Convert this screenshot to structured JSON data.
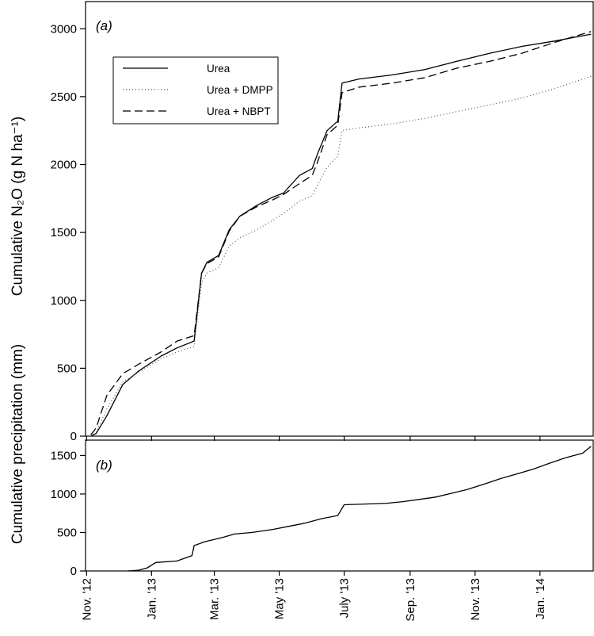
{
  "chart_data": [
    {
      "type": "line",
      "panel_label": "(a)",
      "ylabel": "Cumulative N₂O (g N ha⁻¹)",
      "ylim": [
        0,
        3200
      ],
      "yticks": [
        0,
        500,
        1000,
        1500,
        2000,
        2500,
        3000
      ],
      "xlim": [
        "2012-10-31",
        "2014-02-20"
      ],
      "legend": "top-left",
      "series": [
        {
          "name": "Urea",
          "x": [
            "2012-11-05",
            "2012-11-10",
            "2012-11-20",
            "2012-12-05",
            "2012-12-20",
            "2013-01-10",
            "2013-01-25",
            "2013-02-10",
            "2013-02-17",
            "2013-02-22",
            "2013-03-05",
            "2013-03-15",
            "2013-03-25",
            "2013-04-10",
            "2013-04-25",
            "2013-05-05",
            "2013-05-20",
            "2013-06-01",
            "2013-06-06",
            "2013-06-15",
            "2013-06-25",
            "2013-06-29",
            "2013-07-15",
            "2013-08-15",
            "2013-09-15",
            "2013-10-15",
            "2013-11-15",
            "2013-12-15",
            "2014-01-15",
            "2014-02-18"
          ],
          "values": [
            0,
            20,
            150,
            380,
            480,
            590,
            650,
            700,
            1200,
            1280,
            1330,
            1520,
            1620,
            1700,
            1760,
            1790,
            1920,
            1970,
            2080,
            2250,
            2320,
            2600,
            2630,
            2660,
            2700,
            2760,
            2820,
            2870,
            2910,
            2960
          ]
        },
        {
          "name": "Urea + DMPP",
          "x": [
            "2012-11-05",
            "2012-11-10",
            "2012-11-20",
            "2012-12-05",
            "2012-12-20",
            "2013-01-10",
            "2013-01-25",
            "2013-02-10",
            "2013-02-17",
            "2013-02-22",
            "2013-03-05",
            "2013-03-15",
            "2013-03-25",
            "2013-04-10",
            "2013-04-25",
            "2013-05-05",
            "2013-05-20",
            "2013-06-01",
            "2013-06-06",
            "2013-06-15",
            "2013-06-25",
            "2013-06-29",
            "2013-07-15",
            "2013-08-15",
            "2013-09-15",
            "2013-10-15",
            "2013-11-15",
            "2013-12-15",
            "2014-01-15",
            "2014-02-18"
          ],
          "values": [
            0,
            30,
            200,
            400,
            470,
            570,
            620,
            660,
            1130,
            1200,
            1240,
            1400,
            1460,
            1520,
            1590,
            1640,
            1730,
            1770,
            1850,
            1980,
            2060,
            2250,
            2270,
            2300,
            2340,
            2390,
            2440,
            2490,
            2560,
            2650
          ]
        },
        {
          "name": "Urea + NBPT",
          "x": [
            "2012-11-05",
            "2012-11-10",
            "2012-11-20",
            "2012-12-05",
            "2012-12-20",
            "2013-01-10",
            "2013-01-25",
            "2013-02-10",
            "2013-02-17",
            "2013-02-22",
            "2013-03-05",
            "2013-03-15",
            "2013-03-25",
            "2013-04-10",
            "2013-04-25",
            "2013-05-05",
            "2013-05-20",
            "2013-06-01",
            "2013-06-06",
            "2013-06-15",
            "2013-06-25",
            "2013-06-29",
            "2013-07-15",
            "2013-08-15",
            "2013-09-15",
            "2013-10-15",
            "2013-11-15",
            "2013-12-15",
            "2014-01-15",
            "2014-02-18"
          ],
          "values": [
            10,
            60,
            300,
            460,
            530,
            620,
            700,
            740,
            1200,
            1270,
            1320,
            1510,
            1620,
            1690,
            1740,
            1780,
            1860,
            1920,
            2020,
            2220,
            2290,
            2530,
            2570,
            2600,
            2640,
            2710,
            2760,
            2820,
            2900,
            2980
          ]
        }
      ]
    },
    {
      "type": "line",
      "panel_label": "(b)",
      "ylabel": "Cumulative precipitation (mm)",
      "ylim": [
        0,
        1700
      ],
      "yticks": [
        0,
        500,
        1000,
        1500
      ],
      "xlim": [
        "2012-10-31",
        "2014-02-20"
      ],
      "x_tick_labels": [
        "Nov. '12",
        "Jan. '13",
        "Mar. '13",
        "May '13",
        "July '13",
        "Sep. '13",
        "Nov. '13",
        "Jan. '14"
      ],
      "x_tick_dates": [
        "2012-11-01",
        "2013-01-01",
        "2013-03-01",
        "2013-05-01",
        "2013-07-01",
        "2013-09-01",
        "2013-11-01",
        "2014-01-01"
      ],
      "series": [
        {
          "x": [
            "2012-12-10",
            "2012-12-20",
            "2012-12-28",
            "2013-01-05",
            "2013-01-25",
            "2013-02-08",
            "2013-02-10",
            "2013-02-20",
            "2013-03-01",
            "2013-03-10",
            "2013-03-20",
            "2013-04-05",
            "2013-04-25",
            "2013-05-10",
            "2013-05-25",
            "2013-06-10",
            "2013-06-25",
            "2013-07-01",
            "2013-07-20",
            "2013-08-10",
            "2013-08-25",
            "2013-09-10",
            "2013-09-25",
            "2013-10-10",
            "2013-10-25",
            "2013-11-10",
            "2013-11-25",
            "2013-12-10",
            "2013-12-25",
            "2014-01-10",
            "2014-01-25",
            "2014-02-10",
            "2014-02-18"
          ],
          "values": [
            0,
            10,
            40,
            110,
            130,
            200,
            330,
            380,
            410,
            440,
            480,
            500,
            540,
            580,
            620,
            680,
            720,
            860,
            870,
            880,
            900,
            930,
            960,
            1010,
            1060,
            1130,
            1200,
            1260,
            1320,
            1400,
            1470,
            1530,
            1620
          ]
        }
      ]
    }
  ]
}
